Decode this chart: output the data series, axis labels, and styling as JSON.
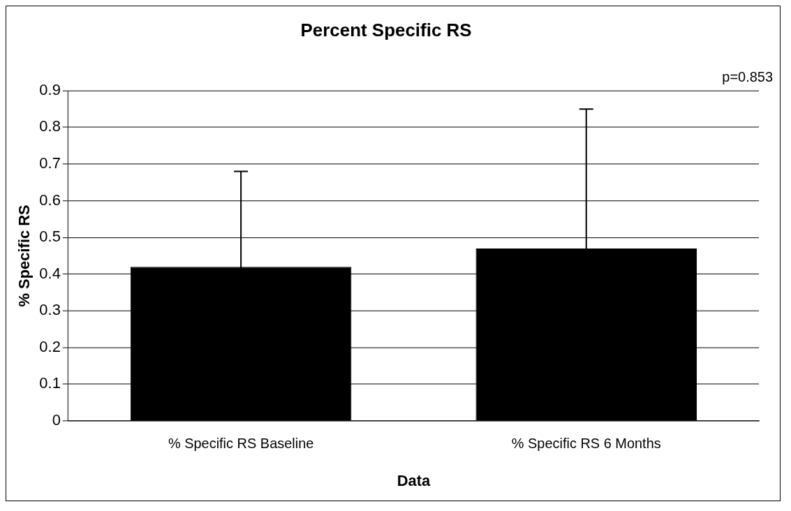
{
  "chart_data": {
    "type": "bar",
    "title": "Percent Specific RS",
    "xlabel": "Data",
    "ylabel": "% Specific RS",
    "categories": [
      "% Specific RS Baseline",
      "% Specific RS 6 Months"
    ],
    "values": [
      0.42,
      0.47
    ],
    "errors": [
      0.26,
      0.38
    ],
    "color": "#000000",
    "ylim": [
      0,
      0.9
    ],
    "yticks": [
      0,
      0.1,
      0.2,
      0.3,
      0.4,
      0.5,
      0.6,
      0.7,
      0.8,
      0.9
    ],
    "grid": "y",
    "annotations": [
      "p=0.853"
    ]
  }
}
